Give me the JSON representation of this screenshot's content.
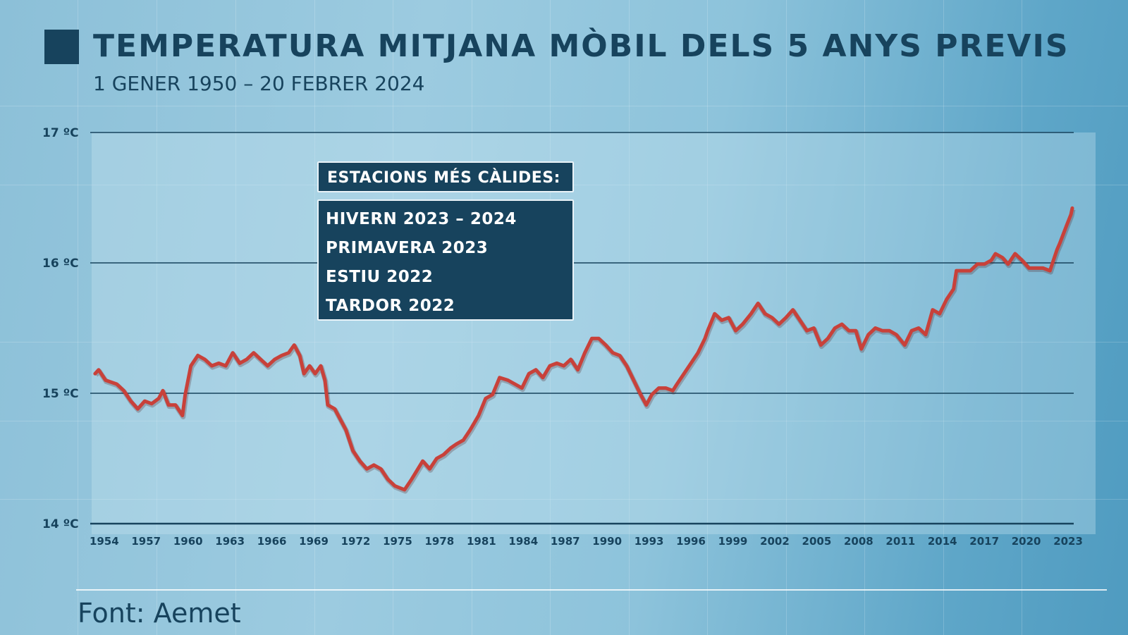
{
  "header": {
    "title": "TEMPERATURA MITJANA MÒBIL DELS 5 ANYS PREVIS",
    "subtitle": "1 GENER 1950 – 20 FEBRER 2024"
  },
  "legend": {
    "heading": "ESTACIONS MÉS CÀLIDES:",
    "items": [
      "HIVERN 2023 – 2024",
      "PRIMAVERA 2023",
      "ESTIU 2022",
      "TARDOR 2022"
    ]
  },
  "footer": {
    "source": "Font: Aemet"
  },
  "colors": {
    "line": "#c8413a",
    "text": "#17435d",
    "background": "#8cc0d8"
  },
  "chart_data": {
    "type": "line",
    "title": "TEMPERATURA MITJANA MÒBIL DELS 5 ANYS PREVIS",
    "subtitle": "1 GENER 1950 – 20 FEBRER 2024",
    "xlabel": "",
    "ylabel": "",
    "xlim": [
      1953,
      2023.4
    ],
    "ylim": [
      14,
      17
    ],
    "grid": "horizontal",
    "ytick_values": [
      14,
      15,
      16,
      17
    ],
    "ytick_labels": [
      "14 ºC",
      "15 ºC",
      "16 ºC",
      "17 ºC"
    ],
    "xtick_labels": [
      "1954",
      "1957",
      "1960",
      "1963",
      "1966",
      "1969",
      "1972",
      "1975",
      "1978",
      "1981",
      "1984",
      "1987",
      "1990",
      "1993",
      "1996",
      "1999",
      "2002",
      "2005",
      "2008",
      "2011",
      "2014",
      "2017",
      "2020",
      "2023"
    ],
    "series": [
      {
        "x": [
          1953.35,
          1953.6,
          1954.1,
          1954.9,
          1955.4,
          1955.9,
          1956.4,
          1956.9,
          1957.4,
          1957.9,
          1958.2,
          1958.6,
          1959.1,
          1959.6,
          1959.8,
          1960.2,
          1960.7,
          1961.2,
          1961.7,
          1962.2,
          1962.7,
          1963.2,
          1963.7,
          1964.2,
          1964.7,
          1965.2,
          1965.7,
          1966.2,
          1966.7,
          1967.2,
          1967.6,
          1968.0,
          1968.3,
          1968.7,
          1969.1,
          1969.5,
          1969.8,
          1970.0,
          1970.5,
          1971.3,
          1971.8,
          1972.3,
          1972.8,
          1973.3,
          1973.8,
          1974.3,
          1974.8,
          1975.5,
          1976.0,
          1976.8,
          1977.3,
          1977.8,
          1978.3,
          1978.8,
          1979.2,
          1979.7,
          1980.2,
          1980.8,
          1981.3,
          1981.8,
          1982.3,
          1982.9,
          1983.4,
          1983.9,
          1984.4,
          1984.9,
          1985.4,
          1985.9,
          1986.4,
          1986.9,
          1987.4,
          1987.9,
          1988.4,
          1988.9,
          1989.4,
          1989.9,
          1990.4,
          1990.9,
          1991.4,
          1991.9,
          1992.4,
          1992.8,
          1993.2,
          1993.7,
          1994.2,
          1994.7,
          1995.0,
          1995.5,
          1996.0,
          1996.5,
          1997.0,
          1997.2,
          1997.7,
          1998.2,
          1998.7,
          1999.2,
          1999.7,
          2000.3,
          2000.8,
          2001.3,
          2001.8,
          2002.3,
          2002.8,
          2003.3,
          2003.8,
          2004.3,
          2004.8,
          2005.3,
          2005.8,
          2006.3,
          2006.8,
          2007.3,
          2007.8,
          2008.2,
          2008.7,
          2009.2,
          2009.7,
          2010.2,
          2010.7,
          2011.3,
          2011.8,
          2012.3,
          2012.8,
          2013.3,
          2013.8,
          2014.3,
          2014.8,
          2015.0,
          2015.5,
          2016.0,
          2016.5,
          2017.0,
          2017.5,
          2017.8,
          2018.3,
          2018.7,
          2019.2,
          2019.7,
          2020.2,
          2020.7,
          2021.2,
          2021.7,
          2022.2,
          2022.4,
          2022.9,
          2023.2,
          2023.3
        ],
        "y": [
          15.15,
          15.18,
          15.1,
          15.07,
          15.02,
          14.94,
          14.88,
          14.94,
          14.92,
          14.96,
          15.02,
          14.91,
          14.91,
          14.83,
          14.99,
          15.21,
          15.29,
          15.26,
          15.21,
          15.23,
          15.21,
          15.31,
          15.23,
          15.26,
          15.31,
          15.26,
          15.21,
          15.26,
          15.29,
          15.31,
          15.37,
          15.29,
          15.15,
          15.21,
          15.15,
          15.21,
          15.1,
          14.91,
          14.88,
          14.72,
          14.56,
          14.48,
          14.42,
          14.45,
          14.42,
          14.34,
          14.29,
          14.26,
          14.34,
          14.48,
          14.42,
          14.5,
          14.53,
          14.58,
          14.61,
          14.64,
          14.72,
          14.83,
          14.96,
          14.99,
          15.12,
          15.1,
          15.07,
          15.04,
          15.15,
          15.18,
          15.12,
          15.21,
          15.23,
          15.21,
          15.26,
          15.18,
          15.31,
          15.42,
          15.42,
          15.37,
          15.31,
          15.29,
          15.21,
          15.1,
          14.99,
          14.91,
          14.99,
          15.04,
          15.04,
          15.02,
          15.07,
          15.15,
          15.23,
          15.31,
          15.42,
          15.48,
          15.61,
          15.56,
          15.58,
          15.48,
          15.53,
          15.61,
          15.69,
          15.61,
          15.58,
          15.53,
          15.58,
          15.64,
          15.56,
          15.48,
          15.5,
          15.37,
          15.42,
          15.5,
          15.53,
          15.48,
          15.48,
          15.34,
          15.45,
          15.5,
          15.48,
          15.48,
          15.45,
          15.37,
          15.48,
          15.5,
          15.45,
          15.64,
          15.61,
          15.72,
          15.8,
          15.94,
          15.94,
          15.94,
          15.99,
          15.99,
          16.02,
          16.07,
          16.04,
          15.99,
          16.07,
          16.02,
          15.96,
          15.96,
          15.96,
          15.94,
          16.1,
          16.15,
          16.29,
          16.37,
          16.42
        ]
      }
    ]
  }
}
